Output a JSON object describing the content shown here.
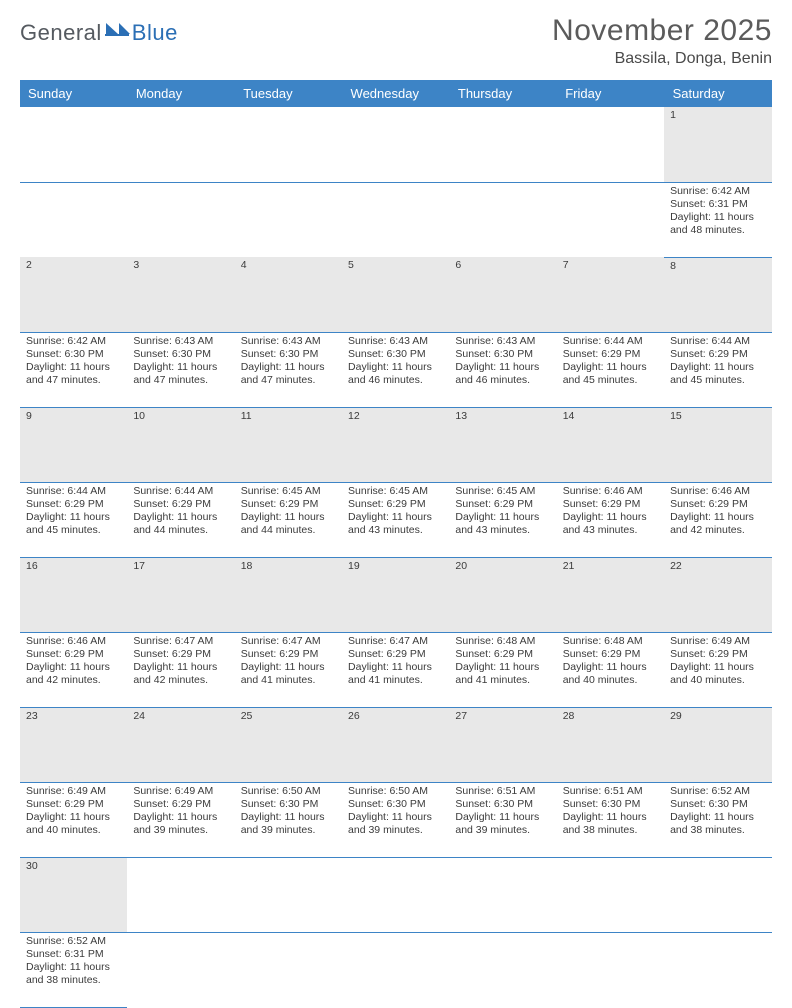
{
  "branding": {
    "part1": "General",
    "part2": "Blue"
  },
  "title": "November 2025",
  "location": "Bassila, Donga, Benin",
  "dayHeaders": [
    "Sunday",
    "Monday",
    "Tuesday",
    "Wednesday",
    "Thursday",
    "Friday",
    "Saturday"
  ],
  "colors": {
    "headerBg": "#3d84c6",
    "headerText": "#ffffff",
    "dayNumBg": "#e8e8e8",
    "brandBlue": "#2b6fb5"
  },
  "weeks": [
    [
      null,
      null,
      null,
      null,
      null,
      null,
      {
        "n": "1",
        "sr": "6:42 AM",
        "ss": "6:31 PM",
        "dl": "11 hours and 48 minutes."
      }
    ],
    [
      {
        "n": "2",
        "sr": "6:42 AM",
        "ss": "6:30 PM",
        "dl": "11 hours and 47 minutes."
      },
      {
        "n": "3",
        "sr": "6:43 AM",
        "ss": "6:30 PM",
        "dl": "11 hours and 47 minutes."
      },
      {
        "n": "4",
        "sr": "6:43 AM",
        "ss": "6:30 PM",
        "dl": "11 hours and 47 minutes."
      },
      {
        "n": "5",
        "sr": "6:43 AM",
        "ss": "6:30 PM",
        "dl": "11 hours and 46 minutes."
      },
      {
        "n": "6",
        "sr": "6:43 AM",
        "ss": "6:30 PM",
        "dl": "11 hours and 46 minutes."
      },
      {
        "n": "7",
        "sr": "6:44 AM",
        "ss": "6:29 PM",
        "dl": "11 hours and 45 minutes."
      },
      {
        "n": "8",
        "sr": "6:44 AM",
        "ss": "6:29 PM",
        "dl": "11 hours and 45 minutes."
      }
    ],
    [
      {
        "n": "9",
        "sr": "6:44 AM",
        "ss": "6:29 PM",
        "dl": "11 hours and 45 minutes."
      },
      {
        "n": "10",
        "sr": "6:44 AM",
        "ss": "6:29 PM",
        "dl": "11 hours and 44 minutes."
      },
      {
        "n": "11",
        "sr": "6:45 AM",
        "ss": "6:29 PM",
        "dl": "11 hours and 44 minutes."
      },
      {
        "n": "12",
        "sr": "6:45 AM",
        "ss": "6:29 PM",
        "dl": "11 hours and 43 minutes."
      },
      {
        "n": "13",
        "sr": "6:45 AM",
        "ss": "6:29 PM",
        "dl": "11 hours and 43 minutes."
      },
      {
        "n": "14",
        "sr": "6:46 AM",
        "ss": "6:29 PM",
        "dl": "11 hours and 43 minutes."
      },
      {
        "n": "15",
        "sr": "6:46 AM",
        "ss": "6:29 PM",
        "dl": "11 hours and 42 minutes."
      }
    ],
    [
      {
        "n": "16",
        "sr": "6:46 AM",
        "ss": "6:29 PM",
        "dl": "11 hours and 42 minutes."
      },
      {
        "n": "17",
        "sr": "6:47 AM",
        "ss": "6:29 PM",
        "dl": "11 hours and 42 minutes."
      },
      {
        "n": "18",
        "sr": "6:47 AM",
        "ss": "6:29 PM",
        "dl": "11 hours and 41 minutes."
      },
      {
        "n": "19",
        "sr": "6:47 AM",
        "ss": "6:29 PM",
        "dl": "11 hours and 41 minutes."
      },
      {
        "n": "20",
        "sr": "6:48 AM",
        "ss": "6:29 PM",
        "dl": "11 hours and 41 minutes."
      },
      {
        "n": "21",
        "sr": "6:48 AM",
        "ss": "6:29 PM",
        "dl": "11 hours and 40 minutes."
      },
      {
        "n": "22",
        "sr": "6:49 AM",
        "ss": "6:29 PM",
        "dl": "11 hours and 40 minutes."
      }
    ],
    [
      {
        "n": "23",
        "sr": "6:49 AM",
        "ss": "6:29 PM",
        "dl": "11 hours and 40 minutes."
      },
      {
        "n": "24",
        "sr": "6:49 AM",
        "ss": "6:29 PM",
        "dl": "11 hours and 39 minutes."
      },
      {
        "n": "25",
        "sr": "6:50 AM",
        "ss": "6:30 PM",
        "dl": "11 hours and 39 minutes."
      },
      {
        "n": "26",
        "sr": "6:50 AM",
        "ss": "6:30 PM",
        "dl": "11 hours and 39 minutes."
      },
      {
        "n": "27",
        "sr": "6:51 AM",
        "ss": "6:30 PM",
        "dl": "11 hours and 39 minutes."
      },
      {
        "n": "28",
        "sr": "6:51 AM",
        "ss": "6:30 PM",
        "dl": "11 hours and 38 minutes."
      },
      {
        "n": "29",
        "sr": "6:52 AM",
        "ss": "6:30 PM",
        "dl": "11 hours and 38 minutes."
      }
    ],
    [
      {
        "n": "30",
        "sr": "6:52 AM",
        "ss": "6:31 PM",
        "dl": "11 hours and 38 minutes."
      },
      null,
      null,
      null,
      null,
      null,
      null
    ]
  ],
  "labels": {
    "sunrise": "Sunrise: ",
    "sunset": "Sunset: ",
    "daylight": "Daylight: "
  }
}
